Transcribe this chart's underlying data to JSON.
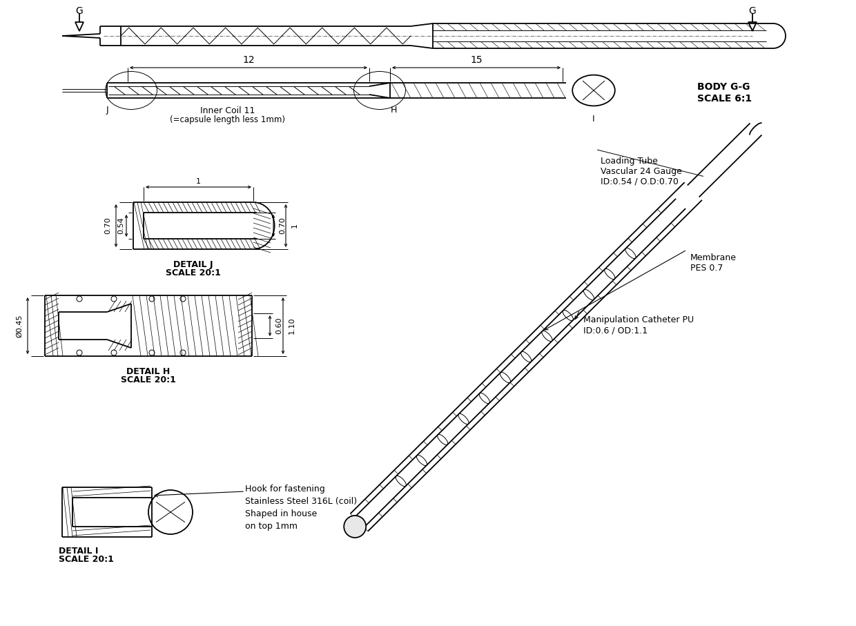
{
  "bg_color": "#ffffff",
  "line_color": "#000000",
  "labels": {
    "G": "G",
    "J": "J",
    "H": "H",
    "I": "I",
    "dim_12": "12",
    "dim_15": "15",
    "dim_1a": "1",
    "dim_070a": "0.70",
    "dim_054": "0.54",
    "dim_070b": "0.70",
    "dim_1b": "1",
    "dim_045": "Ø0.45",
    "dim_060": "0.60",
    "dim_110": "1.10",
    "inner_coil": "Inner Coil 11",
    "inner_coil2": "(=capsule length less 1mm)",
    "body_gg": "BODY G-G",
    "scale_61": "SCALE 6:1",
    "detail_j": "DETAIL J",
    "scale_20j": "SCALE 20:1",
    "detail_h": "DETAIL H",
    "scale_20h": "SCALE 20:1",
    "detail_i": "DETAIL I",
    "scale_20i": "SCALE 20:1",
    "hook_text": "Hook for fastening\nStainless Steel 316L (coil)\nShaped in house\non top 1mm",
    "loading_tube": "Loading Tube\nVascular 24 Gauge\nID:0.54 / O.D:0.70",
    "membrane": "Membrane\nPES 0.7",
    "manipulation": "Manipulation Catheter PU\nID:0.6 / OD:1.1"
  },
  "font_size_label": 9,
  "font_size_dim": 8,
  "font_size_bold": 10
}
